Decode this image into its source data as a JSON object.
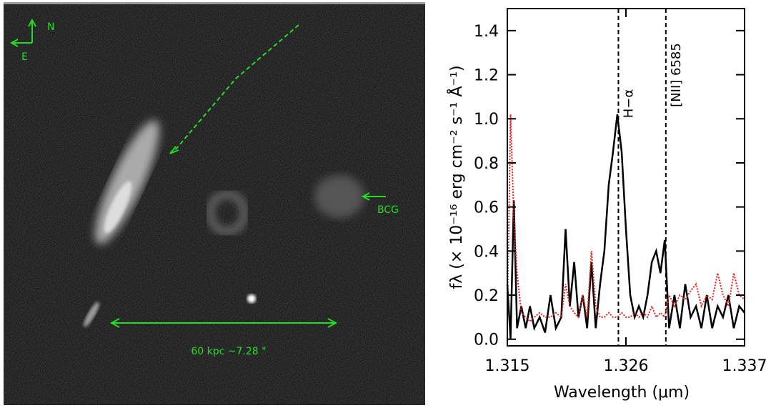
{
  "image_panel": {
    "north_label": "N",
    "east_label": "E",
    "bcg_label": "BCG",
    "scale_label": "60 kpc ~7.28 \""
  },
  "chart_data": {
    "type": "line",
    "x_label": "Wavelength (μm)",
    "y_label": "fλ (× 10⁻¹⁶ erg cm⁻² s⁻¹ Å⁻¹)",
    "xlim": [
      1.315,
      1.337
    ],
    "xticks": [
      1.315,
      1.326,
      1.337
    ],
    "ylim": [
      -0.03,
      1.5
    ],
    "yticks": [
      {
        "value": 0,
        "label": "0.0"
      },
      0.2,
      0.4,
      0.6,
      0.8,
      {
        "value": 1,
        "label": "1.0"
      },
      1.2,
      1.4
    ],
    "x": [
      1.315,
      1.3153,
      1.3156,
      1.3159,
      1.3163,
      1.3167,
      1.3171,
      1.3175,
      1.318,
      1.3185,
      1.319,
      1.3195,
      1.32,
      1.3204,
      1.3208,
      1.3212,
      1.3216,
      1.322,
      1.3224,
      1.3228,
      1.3232,
      1.3236,
      1.324,
      1.3244,
      1.3248,
      1.3252,
      1.3256,
      1.326,
      1.3264,
      1.3268,
      1.3272,
      1.3276,
      1.328,
      1.3284,
      1.3288,
      1.3292,
      1.3296,
      1.33,
      1.3305,
      1.331,
      1.3315,
      1.332,
      1.3325,
      1.333,
      1.3335,
      1.334,
      1.3345,
      1.335,
      1.3355,
      1.336,
      1.3365,
      1.337
    ],
    "series": [
      {
        "color": "#000000",
        "values": [
          0.25,
          0.0,
          0.63,
          0.05,
          0.15,
          0.05,
          0.15,
          0.05,
          0.1,
          0.03,
          0.2,
          0.05,
          0.1,
          0.5,
          0.15,
          0.35,
          0.1,
          0.2,
          0.05,
          0.35,
          0.05,
          0.25,
          0.4,
          0.7,
          0.85,
          1.02,
          0.85,
          0.5,
          0.2,
          0.1,
          0.15,
          0.1,
          0.2,
          0.35,
          0.4,
          0.3,
          0.45,
          0.05,
          0.2,
          0.05,
          0.25,
          0.1,
          0.15,
          0.05,
          0.2,
          0.05,
          0.15,
          0.1,
          0.2,
          0.05,
          0.15,
          0.12
        ]
      },
      {
        "color": "#e8201c",
        "values": [
          0.1,
          1.02,
          0.55,
          0.3,
          0.12,
          0.1,
          0.08,
          0.1,
          0.12,
          0.1,
          0.1,
          0.12,
          0.1,
          0.25,
          0.15,
          0.12,
          0.1,
          0.2,
          0.1,
          0.4,
          0.15,
          0.1,
          0.1,
          0.12,
          0.1,
          0.1,
          0.12,
          0.1,
          0.1,
          0.12,
          0.1,
          0.12,
          0.1,
          0.15,
          0.1,
          0.12,
          0.1,
          0.2,
          0.15,
          0.2,
          0.18,
          0.22,
          0.25,
          0.15,
          0.2,
          0.18,
          0.3,
          0.2,
          0.15,
          0.3,
          0.2,
          0.18
        ]
      }
    ],
    "vlines": [
      {
        "x": 1.3253,
        "label": "H−α"
      },
      {
        "x": 1.3297,
        "label": "[NII] 6585"
      }
    ]
  }
}
